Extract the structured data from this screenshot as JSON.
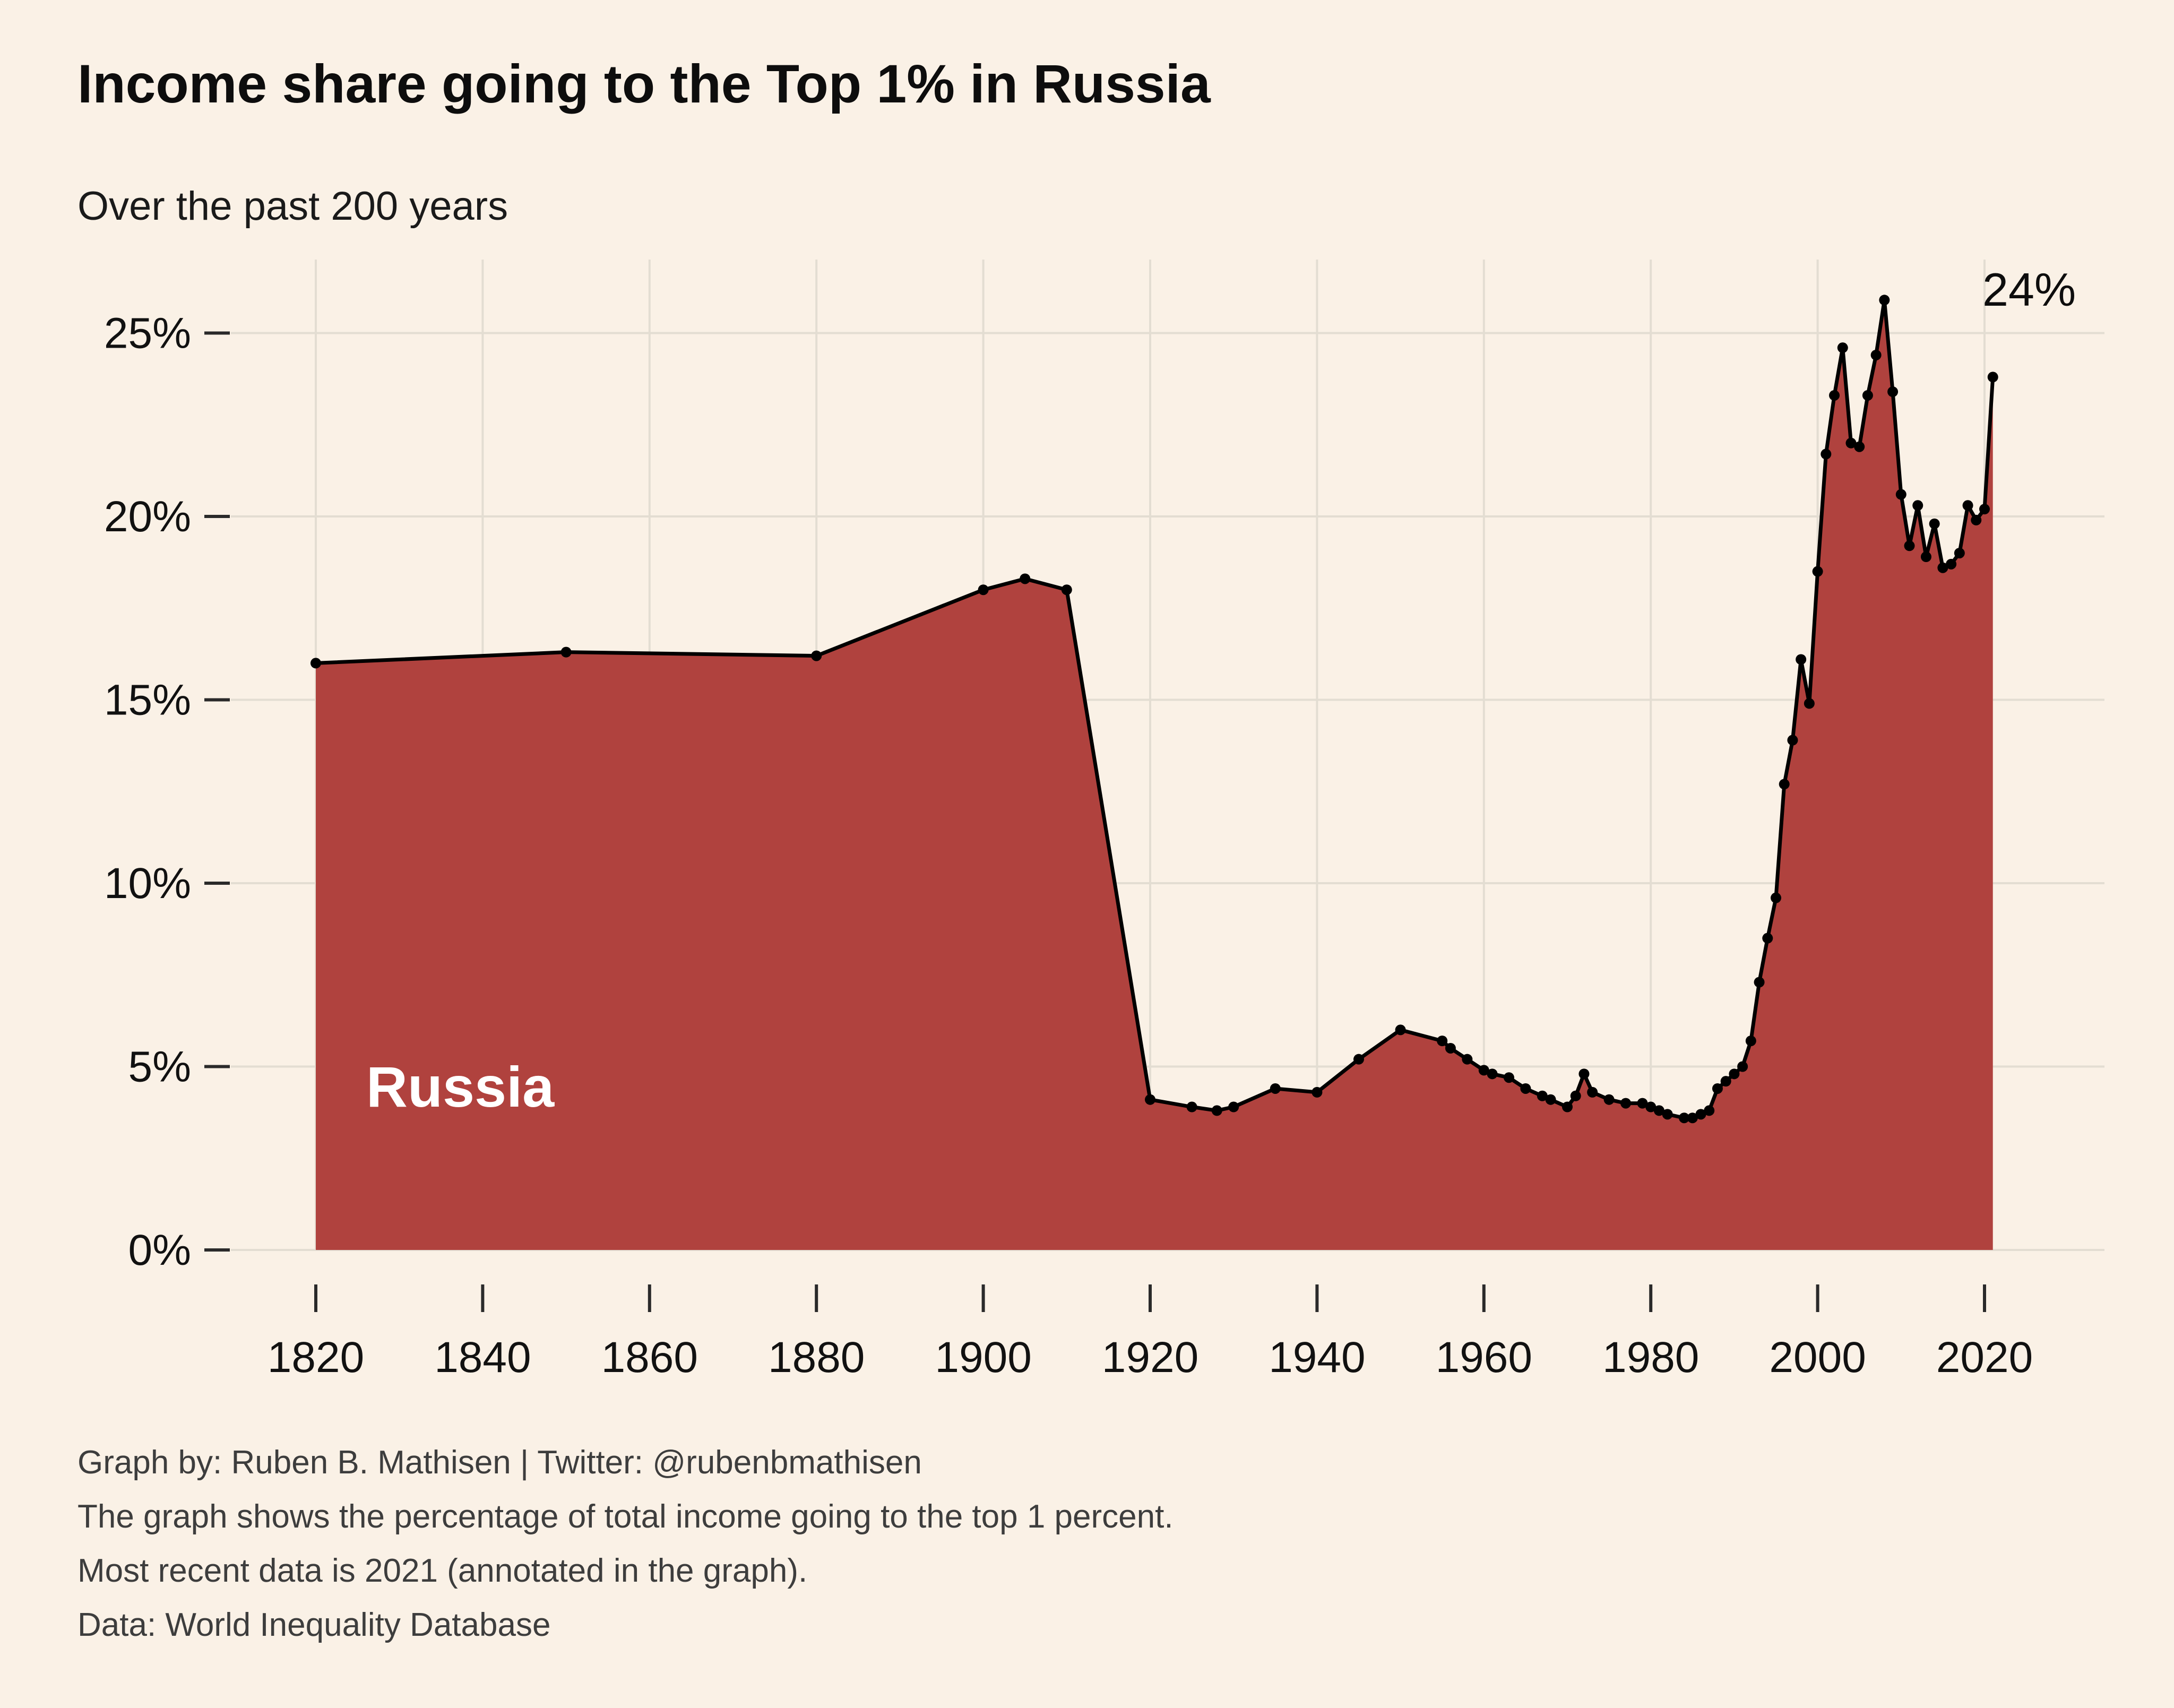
{
  "header": {
    "title": "Income share going to the Top 1% in Russia",
    "subtitle": "Over the past 200 years"
  },
  "chart_data": {
    "type": "area",
    "title": "Income share going to the Top 1% in Russia",
    "subtitle": "Over the past 200 years",
    "series_label": "Russia",
    "annotation": "24%",
    "xlabel": "",
    "ylabel": "",
    "x": [
      1820,
      1850,
      1880,
      1900,
      1905,
      1910,
      1920,
      1925,
      1928,
      1930,
      1935,
      1940,
      1945,
      1950,
      1955,
      1956,
      1958,
      1960,
      1961,
      1963,
      1965,
      1967,
      1968,
      1970,
      1971,
      1972,
      1973,
      1975,
      1977,
      1979,
      1980,
      1981,
      1982,
      1984,
      1985,
      1986,
      1987,
      1988,
      1989,
      1990,
      1991,
      1992,
      1993,
      1994,
      1995,
      1996,
      1997,
      1998,
      1999,
      2000,
      2001,
      2002,
      2003,
      2004,
      2005,
      2006,
      2007,
      2008,
      2009,
      2010,
      2011,
      2012,
      2013,
      2014,
      2015,
      2016,
      2017,
      2018,
      2019,
      2020,
      2021
    ],
    "values": [
      16.0,
      16.3,
      16.2,
      18.0,
      18.3,
      18.0,
      4.1,
      3.9,
      3.8,
      3.9,
      4.4,
      4.3,
      5.2,
      6.0,
      5.7,
      5.5,
      5.2,
      4.9,
      4.8,
      4.7,
      4.4,
      4.2,
      4.1,
      3.9,
      4.2,
      4.8,
      4.3,
      4.1,
      4.0,
      4.0,
      3.9,
      3.8,
      3.7,
      3.6,
      3.6,
      3.7,
      3.8,
      4.4,
      4.6,
      4.8,
      5.0,
      5.7,
      7.3,
      8.5,
      9.6,
      12.7,
      13.9,
      16.1,
      14.9,
      18.5,
      21.7,
      23.3,
      24.6,
      22.0,
      21.9,
      23.3,
      24.4,
      25.9,
      23.4,
      20.6,
      19.2,
      20.3,
      18.9,
      19.8,
      18.6,
      18.7,
      19.0,
      20.3,
      19.9,
      20.2,
      23.8
    ],
    "xticks": [
      1820,
      1840,
      1860,
      1880,
      1900,
      1920,
      1940,
      1960,
      1980,
      2000,
      2020
    ],
    "yticks": [
      0,
      5,
      10,
      15,
      20,
      25
    ],
    "ytick_suffix": "%",
    "xlim": [
      1820,
      2033
    ],
    "ylim": [
      0,
      27
    ],
    "grid": true,
    "legend_position": "none",
    "colors": {
      "area": "#b0423e",
      "line": "#000000",
      "marker": "#000000",
      "background": "#faf1e6",
      "grid": "#e3ddd2",
      "tick": "#2a2a2a",
      "text": "#111111"
    }
  },
  "footer": {
    "lines": [
      "Graph by: Ruben B. Mathisen | Twitter: @rubenbmathisen",
      "The graph shows the percentage of total income going to the top 1 percent.",
      "Most recent data is 2021 (annotated in the graph).",
      "Data: World Inequality Database"
    ]
  }
}
